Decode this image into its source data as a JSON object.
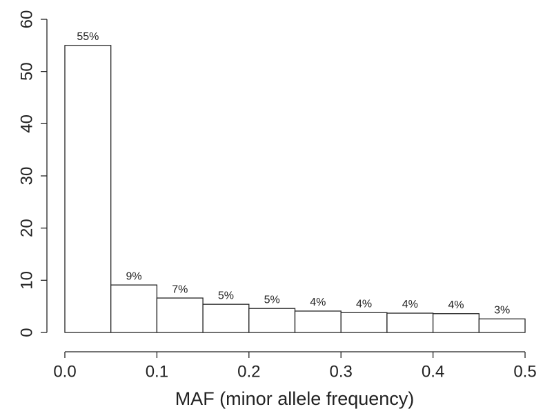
{
  "chart_data": {
    "type": "histogram",
    "xlabel": "MAF (minor allele frequency)",
    "bins": [
      0,
      0.05,
      0.1,
      0.15,
      0.2,
      0.25,
      0.3,
      0.35,
      0.4,
      0.45,
      0.5
    ],
    "values": [
      55,
      9.1,
      6.6,
      5.4,
      4.6,
      4.1,
      3.8,
      3.7,
      3.6,
      2.6
    ],
    "value_labels": [
      "55%",
      "9%",
      "7%",
      "5%",
      "5%",
      "4%",
      "4%",
      "4%",
      "4%",
      "3%"
    ],
    "color": "#ffffff",
    "edgecolor": "#222222",
    "xlim": [
      0,
      0.5
    ],
    "xticks": [
      {
        "value": 0,
        "label": "0.0"
      },
      0.1,
      0.2,
      0.3,
      0.4,
      0.5
    ],
    "ylim": [
      0,
      60
    ],
    "yticks": [
      0,
      10,
      20,
      30,
      40,
      50,
      60
    ]
  }
}
